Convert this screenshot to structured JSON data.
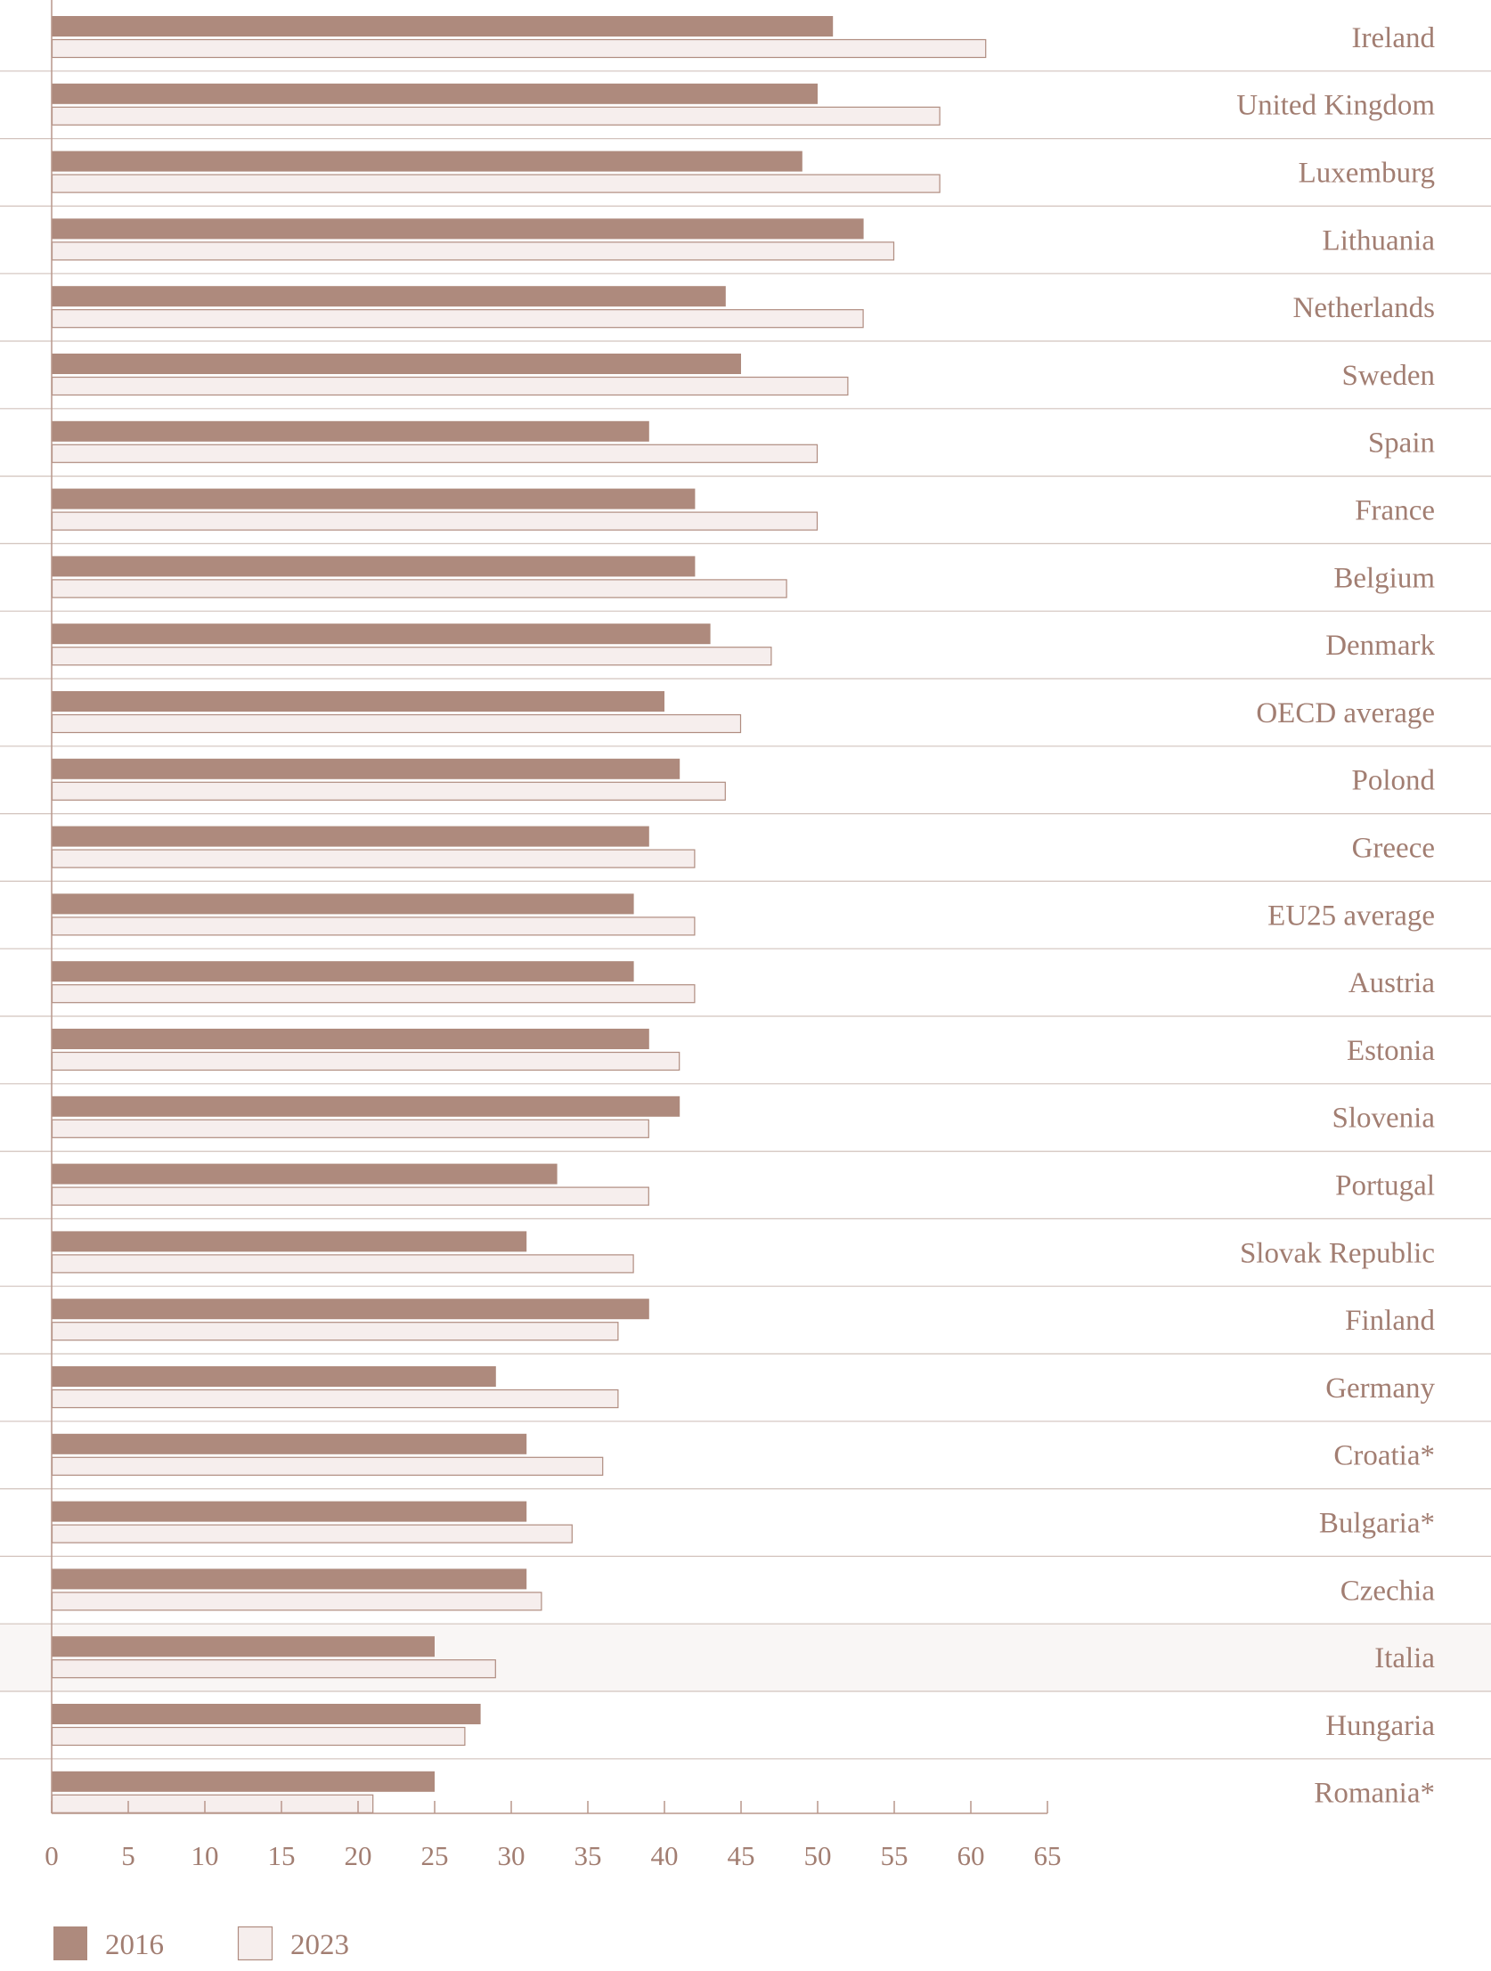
{
  "chart_data": {
    "type": "bar",
    "orientation": "horizontal",
    "title": "",
    "xlabel": "",
    "ylabel": "",
    "xlim": [
      0,
      65
    ],
    "x_ticks": [
      0,
      5,
      10,
      15,
      20,
      25,
      30,
      35,
      40,
      45,
      50,
      55,
      60,
      65
    ],
    "categories": [
      "Ireland",
      "United Kingdom",
      "Luxemburg",
      "Lithuania",
      "Netherlands",
      "Sweden",
      "Spain",
      "France",
      "Belgium",
      "Denmark",
      "OECD average",
      "Polond",
      "Greece",
      "EU25 average",
      "Austria",
      "Estonia",
      "Slovenia",
      "Portugal",
      "Slovak Republic",
      "Finland",
      "Germany",
      "Croatia*",
      "Bulgaria*",
      "Czechia",
      "Italia",
      "Hungaria",
      "Romania*"
    ],
    "highlighted_category": "Italia",
    "series": [
      {
        "name": "2016",
        "color": "#ae8a7d",
        "values": [
          51,
          50,
          49,
          53,
          44,
          45,
          39,
          42,
          42,
          43,
          40,
          41,
          39,
          38,
          38,
          39,
          41,
          33,
          31,
          39,
          29,
          31,
          31,
          31,
          25,
          28,
          25
        ]
      },
      {
        "name": "2023",
        "color": "#f6eeed",
        "values": [
          61,
          58,
          58,
          55,
          53,
          52,
          50,
          50,
          48,
          47,
          45,
          44,
          42,
          42,
          42,
          41,
          39,
          39,
          38,
          37,
          37,
          36,
          34,
          32,
          29,
          27,
          21
        ]
      }
    ],
    "legend": [
      "2016",
      "2023"
    ],
    "legend_position": "bottom-left",
    "grid": false
  },
  "colors": {
    "bar_2016": "#ae8a7d",
    "bar_2023_fill": "#f6eeed",
    "bar_2023_stroke": "#b08c80",
    "axis": "#b9978b",
    "separator": "#d2c3bd",
    "highlight_band": "#f9f6f5",
    "text": "#a27e72"
  }
}
